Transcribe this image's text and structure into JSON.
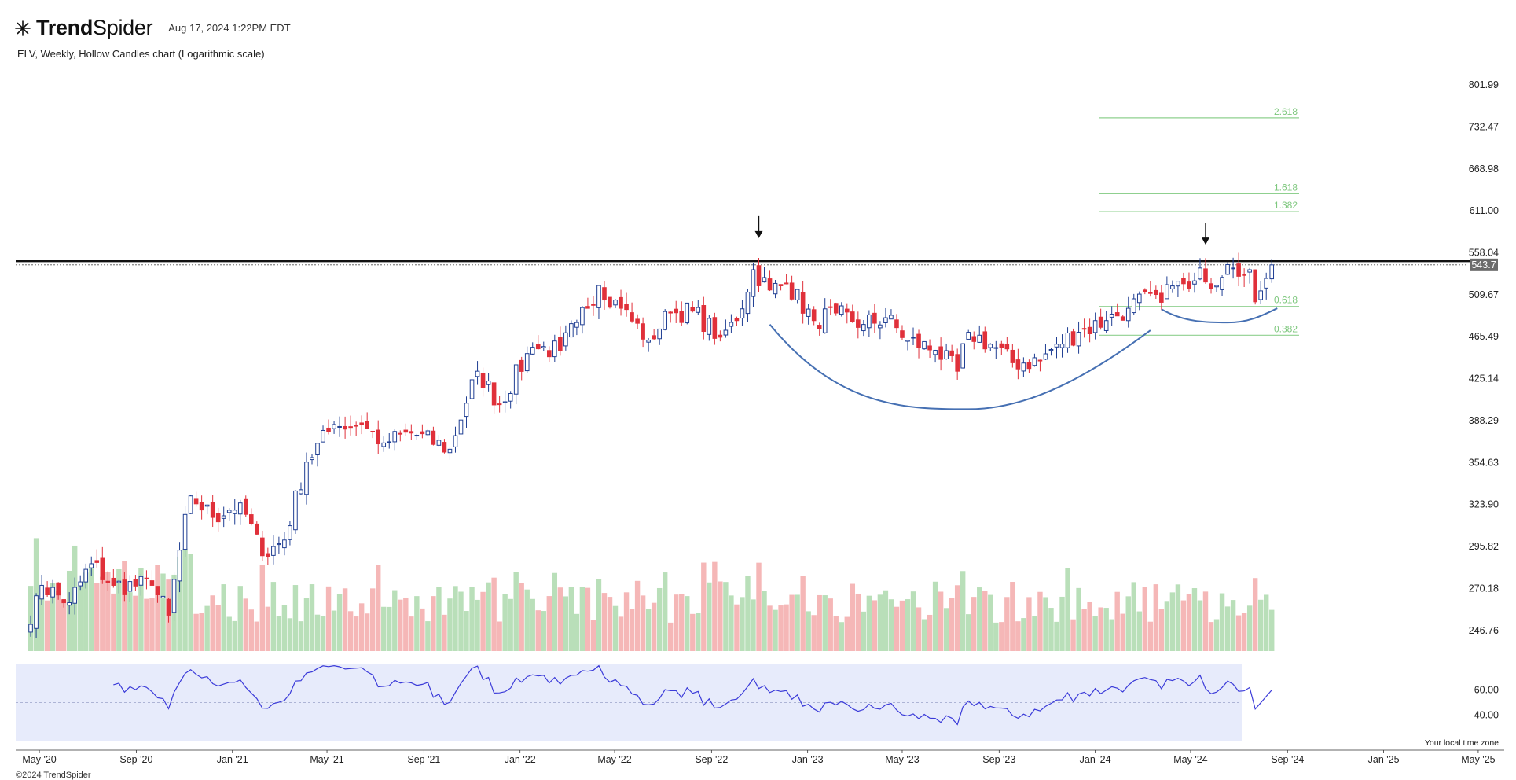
{
  "header": {
    "brand_bold": "Trend",
    "brand_light": "Spider",
    "timestamp": "Aug 17, 2024 1:22PM EDT",
    "subtitle": "ELV, Weekly, Hollow Candles chart (Logarithmic scale)",
    "footer": "©2024 TrendSpider",
    "timezone_note": "Your local time zone"
  },
  "colors": {
    "up": "#1f3e93",
    "down": "#e0303a",
    "vol_up": "#b9dfb9",
    "vol_down": "#f5b7b7",
    "rsi_line": "#3b3bd9",
    "rsi_bg": "#e7ebfb",
    "fib": "#8fd08f",
    "arc": "#4670b3",
    "resistance": "#111111"
  },
  "chart_data": {
    "type": "candlestick",
    "ticker": "ELV",
    "interval": "Weekly",
    "scale": "log",
    "ylim": [
      236,
      820
    ],
    "y_ticks": [
      "801.99",
      "732.47",
      "668.98",
      "611.00",
      "558.04",
      "509.67",
      "465.49",
      "425.14",
      "388.29",
      "354.63",
      "323.90",
      "295.82",
      "270.18",
      "246.76"
    ],
    "x_ticks": [
      "May '20",
      "Sep '20",
      "Jan '21",
      "May '21",
      "Sep '21",
      "Jan '22",
      "May '22",
      "Sep '22",
      "Jan '23",
      "May '23",
      "Sep '23",
      "Jan '24",
      "May '24",
      "Sep '24",
      "Jan '25",
      "May '25"
    ],
    "last_price": "543.7",
    "resistance_level": 548,
    "close_anchors": [
      [
        "2020-04-20",
        250
      ],
      [
        "2020-05-04",
        272
      ],
      [
        "2020-06-08",
        262
      ],
      [
        "2020-07-06",
        285
      ],
      [
        "2020-08-03",
        272
      ],
      [
        "2020-09-21",
        272
      ],
      [
        "2020-10-12",
        255
      ],
      [
        "2020-11-09",
        330
      ],
      [
        "2020-12-07",
        315
      ],
      [
        "2021-01-11",
        325
      ],
      [
        "2021-02-08",
        290
      ],
      [
        "2021-03-08",
        300
      ],
      [
        "2021-04-05",
        355
      ],
      [
        "2021-05-10",
        385
      ],
      [
        "2021-06-14",
        385
      ],
      [
        "2021-07-12",
        370
      ],
      [
        "2021-08-16",
        378
      ],
      [
        "2021-10-04",
        365
      ],
      [
        "2021-11-08",
        432
      ],
      [
        "2021-12-06",
        402
      ],
      [
        "2022-01-17",
        455
      ],
      [
        "2022-02-21",
        452
      ],
      [
        "2022-03-14",
        480
      ],
      [
        "2022-04-11",
        520
      ],
      [
        "2022-05-09",
        495
      ],
      [
        "2022-06-13",
        462
      ],
      [
        "2022-07-11",
        490
      ],
      [
        "2022-08-08",
        492
      ],
      [
        "2022-09-12",
        465
      ],
      [
        "2022-10-03",
        482
      ],
      [
        "2022-10-24",
        538
      ],
      [
        "2022-11-14",
        515
      ],
      [
        "2022-12-05",
        522
      ],
      [
        "2023-01-09",
        482
      ],
      [
        "2023-02-06",
        490
      ],
      [
        "2023-03-13",
        478
      ],
      [
        "2023-04-10",
        485
      ],
      [
        "2023-05-08",
        462
      ],
      [
        "2023-06-12",
        452
      ],
      [
        "2023-07-10",
        432
      ],
      [
        "2023-07-24",
        470
      ],
      [
        "2023-08-21",
        458
      ],
      [
        "2023-09-18",
        440
      ],
      [
        "2023-10-23",
        442
      ],
      [
        "2023-11-13",
        458
      ],
      [
        "2023-12-11",
        470
      ],
      [
        "2024-01-15",
        482
      ],
      [
        "2024-02-12",
        495
      ],
      [
        "2024-03-18",
        510
      ],
      [
        "2024-04-22",
        522
      ],
      [
        "2024-05-13",
        540
      ],
      [
        "2024-06-03",
        520
      ],
      [
        "2024-06-24",
        540
      ],
      [
        "2024-07-15",
        538
      ],
      [
        "2024-07-22",
        502
      ],
      [
        "2024-08-05",
        528
      ],
      [
        "2024-08-12",
        543.7
      ]
    ],
    "fib_levels": [
      {
        "label": "2.618",
        "value": 747
      },
      {
        "label": "1.618",
        "value": 634
      },
      {
        "label": "1.382",
        "value": 610
      },
      {
        "label": "0.618",
        "value": 497
      },
      {
        "label": "0.382",
        "value": 467
      }
    ],
    "annotations": {
      "arrows": [
        {
          "date": "2022-10-31",
          "value": 576
        },
        {
          "date": "2024-05-20",
          "value": 568
        }
      ],
      "cup": {
        "start": [
          "2022-11-14",
          478
        ],
        "bottom": [
          "2023-07-24",
          398
        ],
        "end": [
          "2024-03-11",
          472
        ]
      },
      "handle": {
        "start": [
          "2024-03-25",
          494
        ],
        "bottom": [
          "2024-06-17",
          480
        ],
        "end": [
          "2024-08-19",
          495
        ]
      }
    },
    "rsi": {
      "period": 14,
      "y_ticks": [
        "60.00",
        "40.00"
      ],
      "ylim": [
        20,
        80
      ],
      "midline": 50
    }
  }
}
